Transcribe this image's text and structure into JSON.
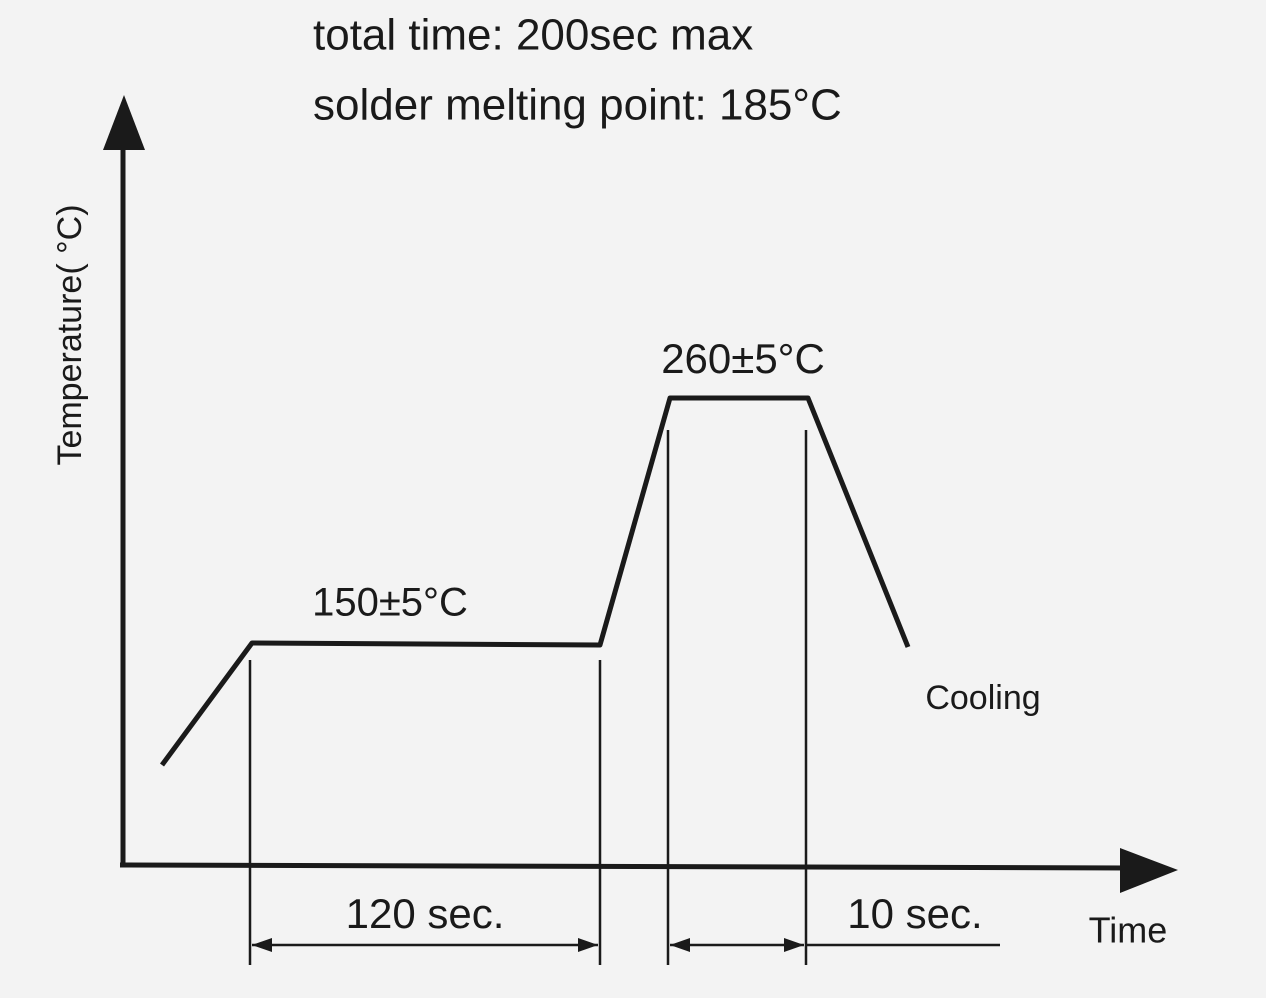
{
  "header": {
    "line1": "total time: 200sec max",
    "line2": "solder melting point: 185°C"
  },
  "axes": {
    "y_label": "Temperature( °C)",
    "x_label": "Time"
  },
  "annotations": {
    "preheat": "150±5°C",
    "peak": "260±5°C",
    "cooling": "Cooling",
    "preheat_duration": "120 sec.",
    "peak_duration": "10 sec."
  }
}
